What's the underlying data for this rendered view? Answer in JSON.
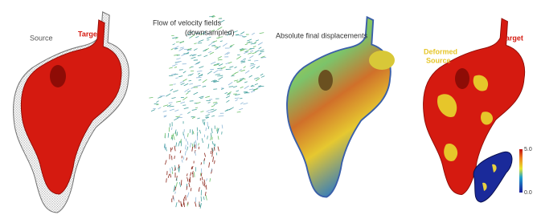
{
  "panels": [
    {
      "labels": [
        "Source",
        "Target"
      ]
    },
    {
      "labels": [
        "Flow of velocity fields",
        "(downsampled)"
      ]
    },
    {
      "labels": [
        "Absolute final displacements"
      ]
    },
    {
      "labels": [
        "Deformed",
        "Source",
        "Target"
      ],
      "colorbar": {
        "max_label": "5.0",
        "min_label": "0.0"
      }
    }
  ]
}
